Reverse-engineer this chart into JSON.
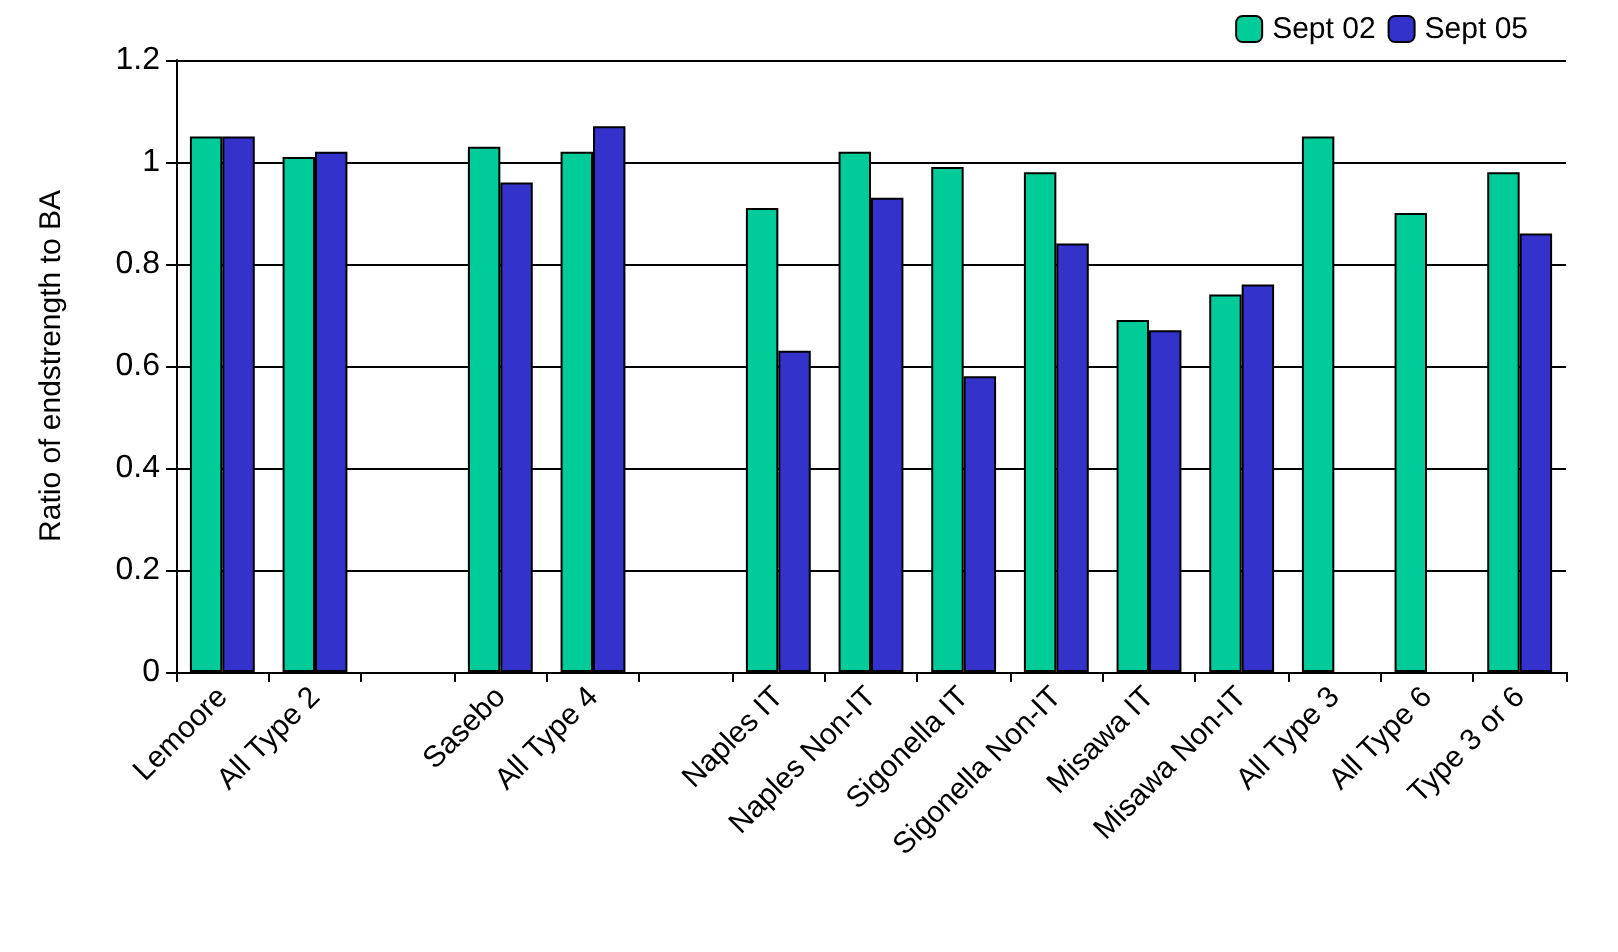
{
  "chart_data": {
    "type": "bar",
    "ylabel": "Ratio of endstrength to BA",
    "categories": [
      "Lemoore",
      "All Type 2",
      null,
      "Sasebo",
      "All Type 4",
      null,
      "Naples IT",
      "Naples Non-IT",
      "Sigonella IT",
      "Sigonella Non-IT",
      "Misawa IT",
      "Misawa Non-IT",
      "All Type 3",
      "All Type 6",
      "Type 3 or 6"
    ],
    "series": [
      {
        "name": "Sept 02",
        "color": "#00cc99",
        "values": [
          1.05,
          1.01,
          null,
          1.03,
          1.02,
          null,
          0.91,
          1.02,
          0.99,
          0.98,
          0.69,
          0.74,
          1.05,
          0.9,
          0.98
        ]
      },
      {
        "name": "Sept 05",
        "color": "#3333cc",
        "values": [
          1.05,
          1.02,
          null,
          0.96,
          1.07,
          null,
          0.63,
          0.93,
          0.58,
          0.84,
          0.67,
          0.76,
          null,
          null,
          0.86
        ]
      }
    ],
    "ylim": [
      0,
      1.2
    ],
    "yticks": [
      0,
      0.2,
      0.4,
      0.6,
      0.8,
      1,
      1.2
    ],
    "grid": "y",
    "legend": "top right"
  }
}
